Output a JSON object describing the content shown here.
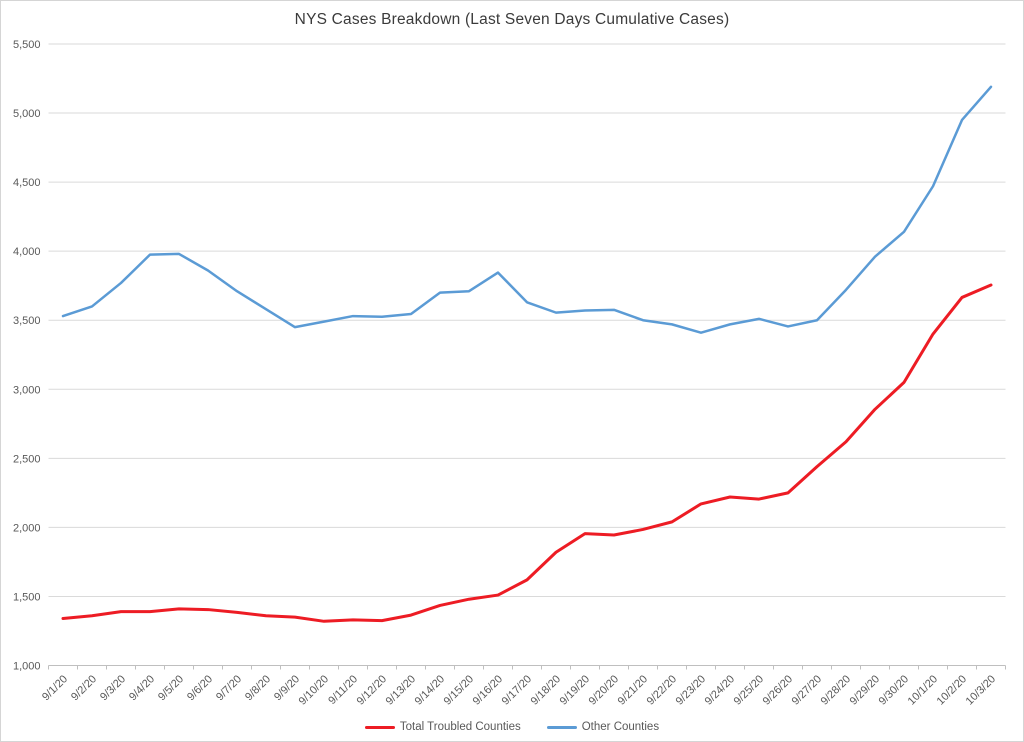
{
  "chart_data": {
    "type": "line",
    "title": "NYS Cases Breakdown (Last Seven Days Cumulative Cases)",
    "x_categories": [
      "9/1/20",
      "9/2/20",
      "9/3/20",
      "9/4/20",
      "9/5/20",
      "9/6/20",
      "9/7/20",
      "9/8/20",
      "9/9/20",
      "9/10/20",
      "9/11/20",
      "9/12/20",
      "9/13/20",
      "9/14/20",
      "9/15/20",
      "9/16/20",
      "9/17/20",
      "9/18/20",
      "9/19/20",
      "9/20/20",
      "9/21/20",
      "9/22/20",
      "9/23/20",
      "9/24/20",
      "9/25/20",
      "9/26/20",
      "9/27/20",
      "9/28/20",
      "9/29/20",
      "9/30/20",
      "10/1/20",
      "10/2/20",
      "10/3/20"
    ],
    "series": [
      {
        "name": "Total Troubled Counties",
        "color": "#ed1c24",
        "line_width": 3,
        "values": [
          1340,
          1360,
          1390,
          1390,
          1410,
          1405,
          1385,
          1360,
          1350,
          1320,
          1330,
          1325,
          1365,
          1435,
          1480,
          1510,
          1620,
          1820,
          1955,
          1945,
          1985,
          2040,
          2170,
          2220,
          2205,
          2250,
          2440,
          2620,
          2855,
          3050,
          3400,
          3665,
          3755
        ]
      },
      {
        "name": "Other Counties",
        "color": "#5b9bd5",
        "line_width": 2.5,
        "values": [
          3530,
          3600,
          3770,
          3975,
          3980,
          3860,
          3710,
          3580,
          3450,
          3490,
          3530,
          3525,
          3545,
          3700,
          3710,
          3845,
          3630,
          3555,
          3570,
          3575,
          3500,
          3470,
          3410,
          3470,
          3510,
          3455,
          3500,
          3720,
          3960,
          4140,
          4470,
          4950,
          5190
        ]
      }
    ],
    "ylim": [
      1000,
      5500
    ],
    "ytick_step": 500,
    "ytick_labels": [
      "1,000",
      "1,500",
      "2,000",
      "2,500",
      "3,000",
      "3,500",
      "4,000",
      "4,500",
      "5,000",
      "5,500"
    ],
    "grid": true,
    "legend_position": "bottom",
    "colors": {
      "gridline": "#dadada",
      "axis_line": "#bfbfbf",
      "axis_text": "#595959",
      "title_text": "#3b3b3b",
      "background": "#ffffff"
    }
  }
}
